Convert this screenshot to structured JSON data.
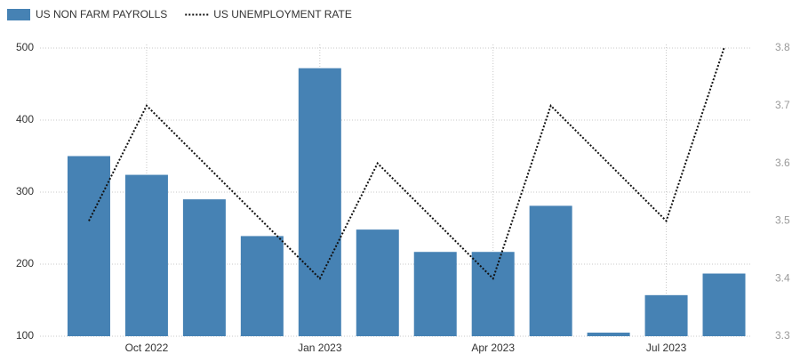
{
  "chart_data": {
    "type": "bar",
    "categories": [
      null,
      "Oct 2022",
      null,
      null,
      "Jan 2023",
      null,
      null,
      "Apr 2023",
      null,
      null,
      "Jul 2023",
      null
    ],
    "series": [
      {
        "name": "US NON FARM PAYROLLS",
        "color": "#4682b4",
        "values": [
          350,
          324,
          290,
          239,
          472,
          248,
          217,
          217,
          281,
          105,
          157,
          187
        ]
      },
      {
        "name": "US UNEMPLOYMENT RATE",
        "color": "#111111",
        "type": "line",
        "axis": "y2",
        "values": [
          3.5,
          3.7,
          3.6,
          3.5,
          3.4,
          3.6,
          3.5,
          3.4,
          3.7,
          3.6,
          3.5,
          3.8
        ]
      }
    ],
    "ylim": [
      100,
      500
    ],
    "yticks": [
      100,
      200,
      300,
      400,
      500
    ],
    "y2lim": [
      3.3,
      3.8
    ],
    "y2ticks": [
      3.3,
      3.4,
      3.5,
      3.6,
      3.7,
      3.8
    ],
    "grid": true
  }
}
